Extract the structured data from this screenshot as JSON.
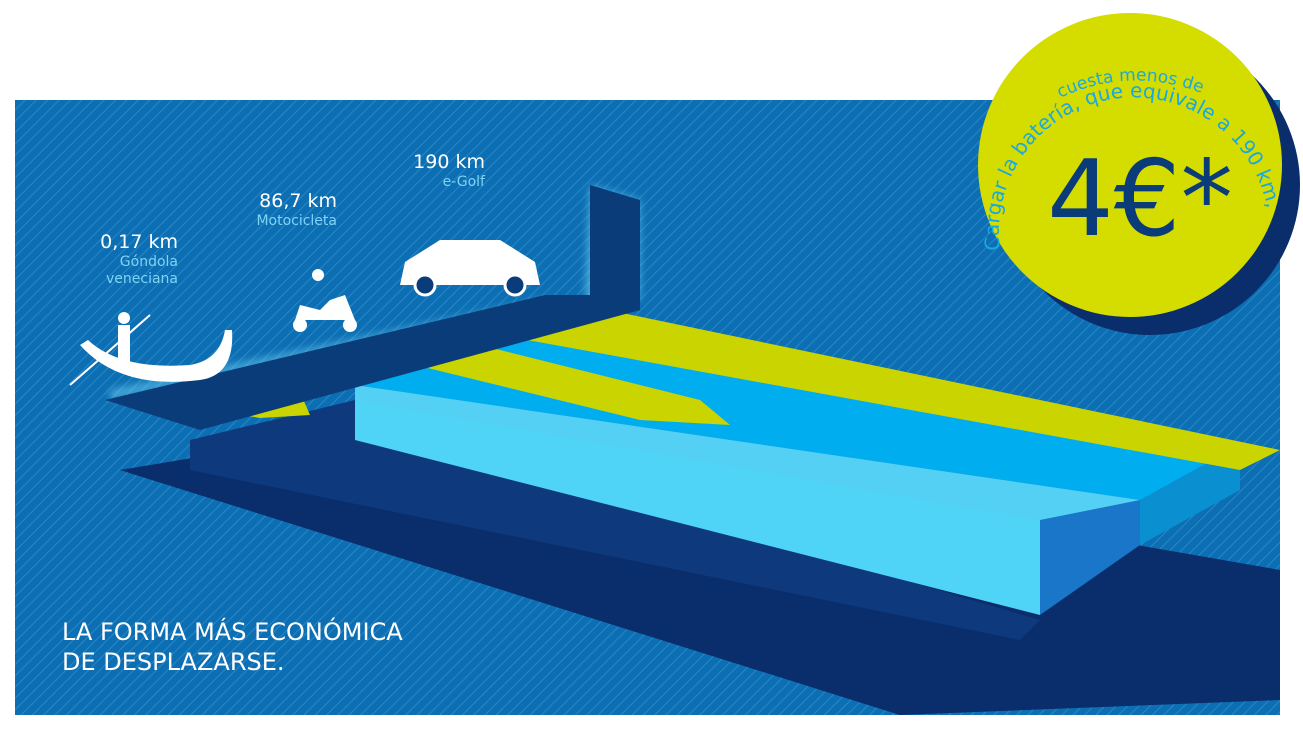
{
  "labels": [
    {
      "distance": "0,17 km",
      "name": [
        "Góndola",
        "veneciana"
      ]
    },
    {
      "distance": "86,7 km",
      "name": [
        "Motocicleta"
      ]
    },
    {
      "distance": "190 km",
      "name": [
        "e-Golf"
      ]
    }
  ],
  "badge": {
    "arc_line": "Cargar la batería, que equivale a 190 km,",
    "inner_line": "cuesta menos de",
    "price": "4€*"
  },
  "headline": [
    "LA FORMA MÁS ECONÓMICA",
    "DE DESPLAZARSE."
  ]
}
